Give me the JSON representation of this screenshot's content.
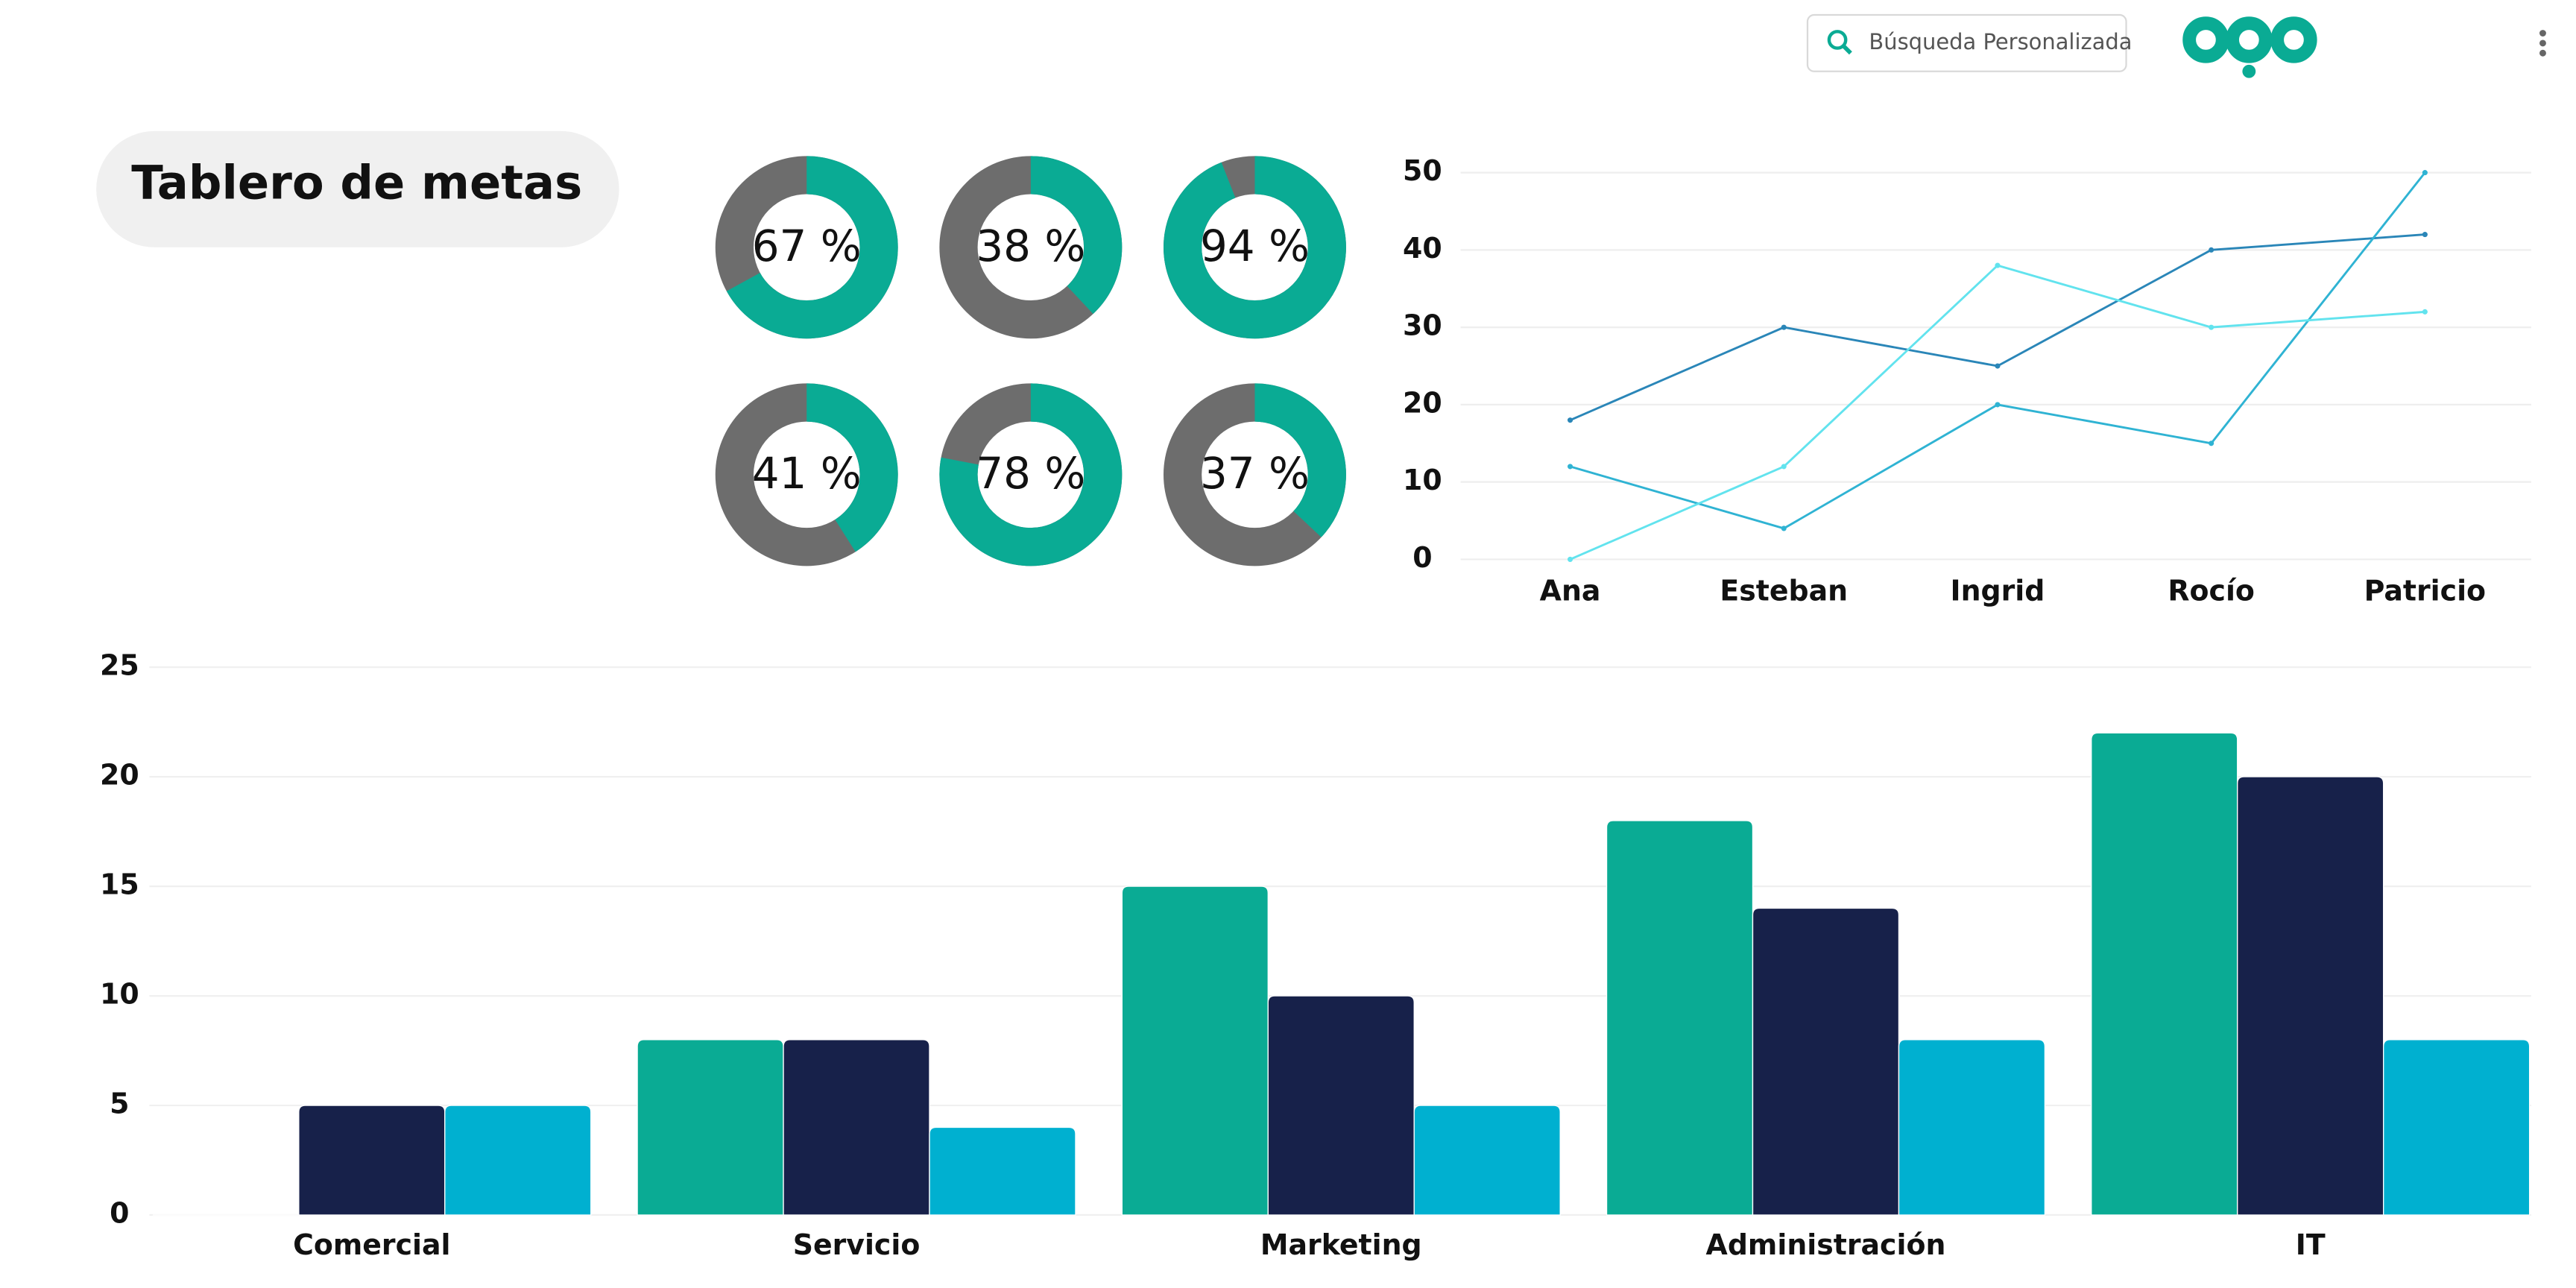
{
  "header": {
    "search_placeholder": "Búsqueda Personalizada"
  },
  "title": "Tablero de metas",
  "chart_data": [
    {
      "type": "donut",
      "values": [
        67,
        38,
        94,
        41,
        78,
        37
      ],
      "value_labels": [
        "67 %",
        "38 %",
        "94 %",
        "41 %",
        "78 %",
        "37 %"
      ],
      "color": "#0aab94",
      "track_color": "#6d6d6d"
    },
    {
      "type": "line",
      "categories": [
        "Ana",
        "Esteban",
        "Ingrid",
        "Rocío",
        "Patricio"
      ],
      "series": [
        {
          "color": "#2a86b8",
          "values": [
            18,
            30,
            25,
            40,
            42
          ]
        },
        {
          "color": "#2fb3d3",
          "values": [
            12,
            4,
            20,
            15,
            50
          ]
        },
        {
          "color": "#62e3ee",
          "values": [
            0,
            12,
            38,
            30,
            32
          ]
        }
      ],
      "ylim": [
        0,
        50
      ],
      "yticks": [
        0,
        10,
        20,
        30,
        40,
        50
      ],
      "grid": true
    },
    {
      "type": "bar",
      "categories": [
        "Comercial",
        "Servicio",
        "Marketing",
        "Administración",
        "IT"
      ],
      "series": [
        {
          "color": "#0aab94",
          "values": [
            0,
            8,
            15,
            18,
            22
          ]
        },
        {
          "color": "#17214a",
          "values": [
            5,
            8,
            10,
            14,
            20
          ]
        },
        {
          "color": "#00b0d0",
          "values": [
            5,
            4,
            5,
            8,
            8
          ]
        }
      ],
      "ylim": [
        0,
        25
      ],
      "yticks": [
        0,
        5,
        10,
        15,
        20,
        25
      ],
      "grid": true
    }
  ]
}
